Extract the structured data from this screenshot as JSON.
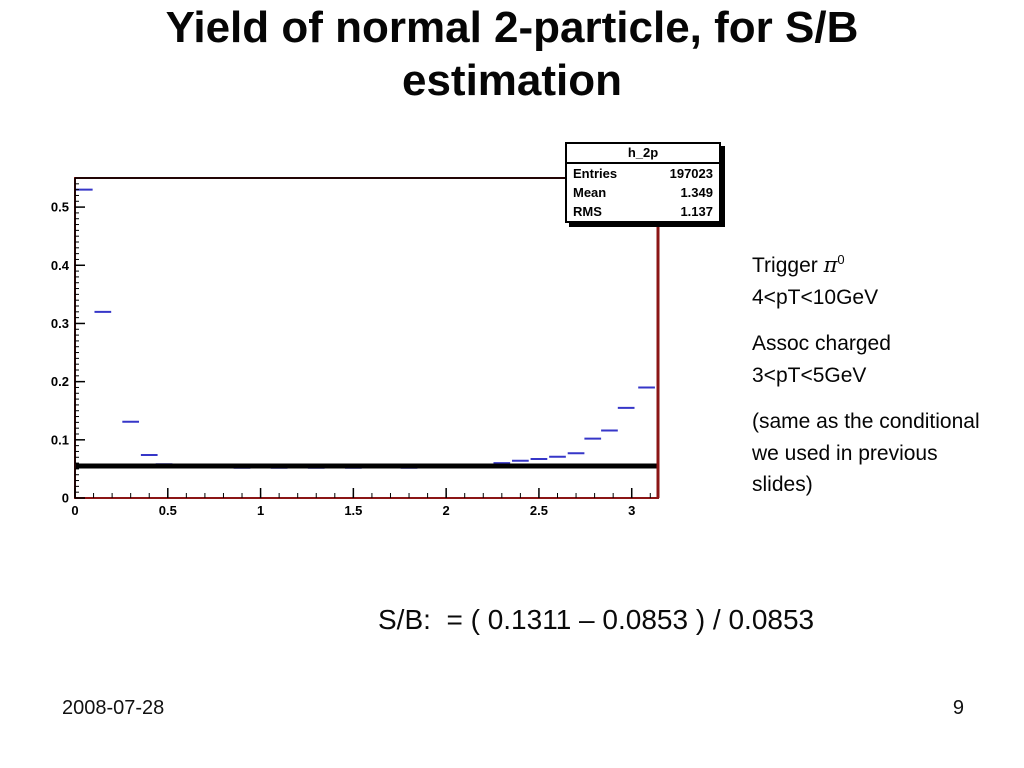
{
  "slide": {
    "title": "Yield of normal 2-particle, for S/B estimation",
    "formula": "S/B:  = ( 0.1311 – 0.0853 ) / 0.0853",
    "footer_date": "2008-07-28",
    "page_number": "9"
  },
  "annotations": {
    "trigger_prefix": "Trigger ",
    "trigger_symbol": "π",
    "trigger_superscript": "0",
    "trigger_range": "4<pT<10GeV",
    "assoc_label": "Assoc charged",
    "assoc_range": "3<pT<5GeV",
    "note": "(same as the conditional we used in previous slides)"
  },
  "stats_box": {
    "title": "h_2p",
    "rows": [
      {
        "label": "Entries",
        "value": "197023"
      },
      {
        "label": "Mean",
        "value": "1.349"
      },
      {
        "label": "RMS",
        "value": "1.137"
      }
    ]
  },
  "chart_data": {
    "type": "scatter",
    "title": "h_2p",
    "xlabel": "",
    "ylabel": "",
    "xlim": [
      0,
      3.1416
    ],
    "ylim": [
      0,
      0.55
    ],
    "x_major_ticks": [
      0,
      0.5,
      1,
      1.5,
      2,
      2.5,
      3
    ],
    "y_major_ticks": [
      0,
      0.1,
      0.2,
      0.3,
      0.4,
      0.5
    ],
    "x_minor_step": 0.1,
    "y_minor_step": 0.01,
    "grid": false,
    "legend": false,
    "baseline_value": 0.055,
    "bin_half_width": 0.045,
    "marker_color": "#3636c8",
    "baseline_color": "#000000",
    "frame_color": "#8b1515",
    "points": [
      [
        0.05,
        0.53
      ],
      [
        0.15,
        0.32
      ],
      [
        0.3,
        0.131
      ],
      [
        0.4,
        0.074
      ],
      [
        0.48,
        0.058
      ],
      [
        0.58,
        0.056
      ],
      [
        0.7,
        0.053
      ],
      [
        0.8,
        0.053
      ],
      [
        0.9,
        0.052
      ],
      [
        1.0,
        0.053
      ],
      [
        1.1,
        0.052
      ],
      [
        1.2,
        0.053
      ],
      [
        1.3,
        0.052
      ],
      [
        1.4,
        0.053
      ],
      [
        1.5,
        0.052
      ],
      [
        1.6,
        0.053
      ],
      [
        1.7,
        0.053
      ],
      [
        1.8,
        0.052
      ],
      [
        1.9,
        0.053
      ],
      [
        2.0,
        0.053
      ],
      [
        2.1,
        0.054
      ],
      [
        2.2,
        0.056
      ],
      [
        2.3,
        0.06
      ],
      [
        2.4,
        0.064
      ],
      [
        2.5,
        0.067
      ],
      [
        2.6,
        0.071
      ],
      [
        2.7,
        0.077
      ],
      [
        2.79,
        0.102
      ],
      [
        2.88,
        0.116
      ],
      [
        2.97,
        0.155
      ],
      [
        3.08,
        0.19
      ]
    ]
  }
}
